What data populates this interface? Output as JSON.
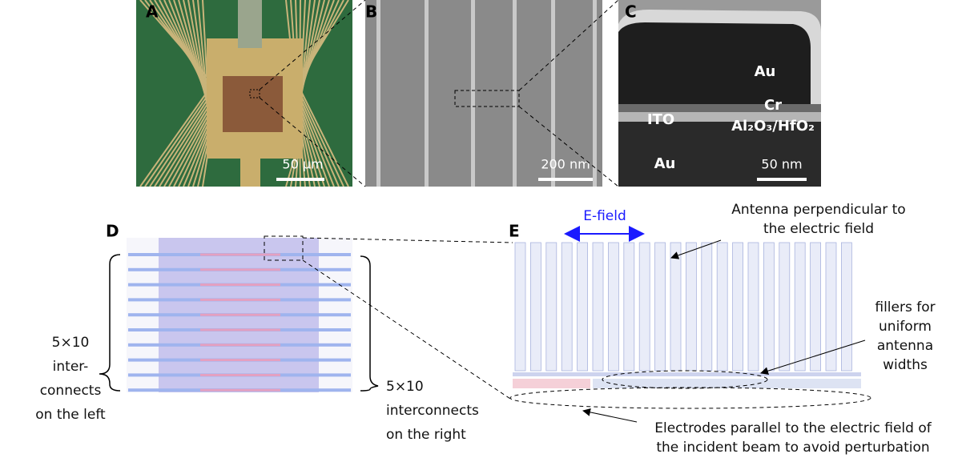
{
  "panels": {
    "A": {
      "label": "A",
      "scale_bar": "50 µm"
    },
    "B": {
      "label": "B",
      "scale_bar": "200 nm"
    },
    "C": {
      "label": "C",
      "scale_bar": "50 nm",
      "layers": [
        "Au",
        "Cr",
        "ITO",
        "Al₂O₃/HfO₂",
        "Au"
      ]
    },
    "D": {
      "label": "D",
      "left_note": [
        "5×10",
        "inter-",
        "connects",
        "on the left"
      ],
      "right_note": [
        "5×10",
        "interconnects",
        "on the right"
      ]
    },
    "E": {
      "label": "E",
      "field_label": "E-field",
      "antenna_note": [
        "Antenna perpendicular to",
        "the electric field"
      ],
      "filler_note": [
        "fillers for",
        "uniform",
        "antenna",
        "widths"
      ],
      "electrode_note": [
        "Electrodes parallel to the electric field of",
        "the incident beam to avoid perturbation"
      ]
    }
  }
}
